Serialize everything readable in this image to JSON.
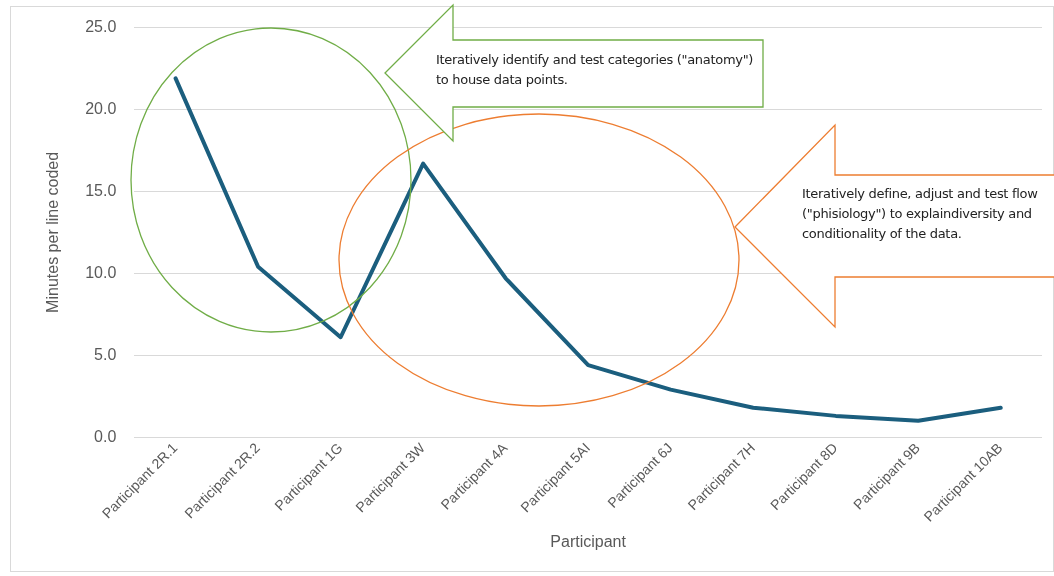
{
  "chart_data": {
    "type": "line",
    "xlabel": "Participant",
    "ylabel": "Minutes per line coded",
    "categories": [
      "Participant 2R.1",
      "Participant 2R.2",
      "Participant 1G",
      "Participant 3W",
      "Participant 4A",
      "Participant 5AI",
      "Participant 6J",
      "Participant 7H",
      "Participant 8D",
      "Participant 9B",
      "Participant 10AB"
    ],
    "series": [
      {
        "color": "#1b5e7e",
        "values": [
          21.9,
          10.4,
          6.1,
          16.7,
          9.7,
          4.4,
          2.9,
          1.8,
          1.3,
          1.0,
          1.8
        ]
      }
    ],
    "ylim": [
      0,
      25
    ],
    "yticks": [
      {
        "value": 0,
        "label": "0.0"
      },
      {
        "value": 5,
        "label": "5.0"
      },
      {
        "value": 10,
        "label": "10.0"
      },
      {
        "value": 15,
        "label": "15.0"
      },
      {
        "value": 20,
        "label": "20.0"
      },
      {
        "value": 25,
        "label": "25.0"
      }
    ],
    "grid": "y",
    "legend": false,
    "marker": "none",
    "line_style": "solid",
    "annotations": [
      "Iteratively identify and test categories (\"anatomy\") to house data points.",
      "Iteratively define, adjust and test flow (\"phisiology\") to explaindiversity and conditionality of the data."
    ]
  }
}
